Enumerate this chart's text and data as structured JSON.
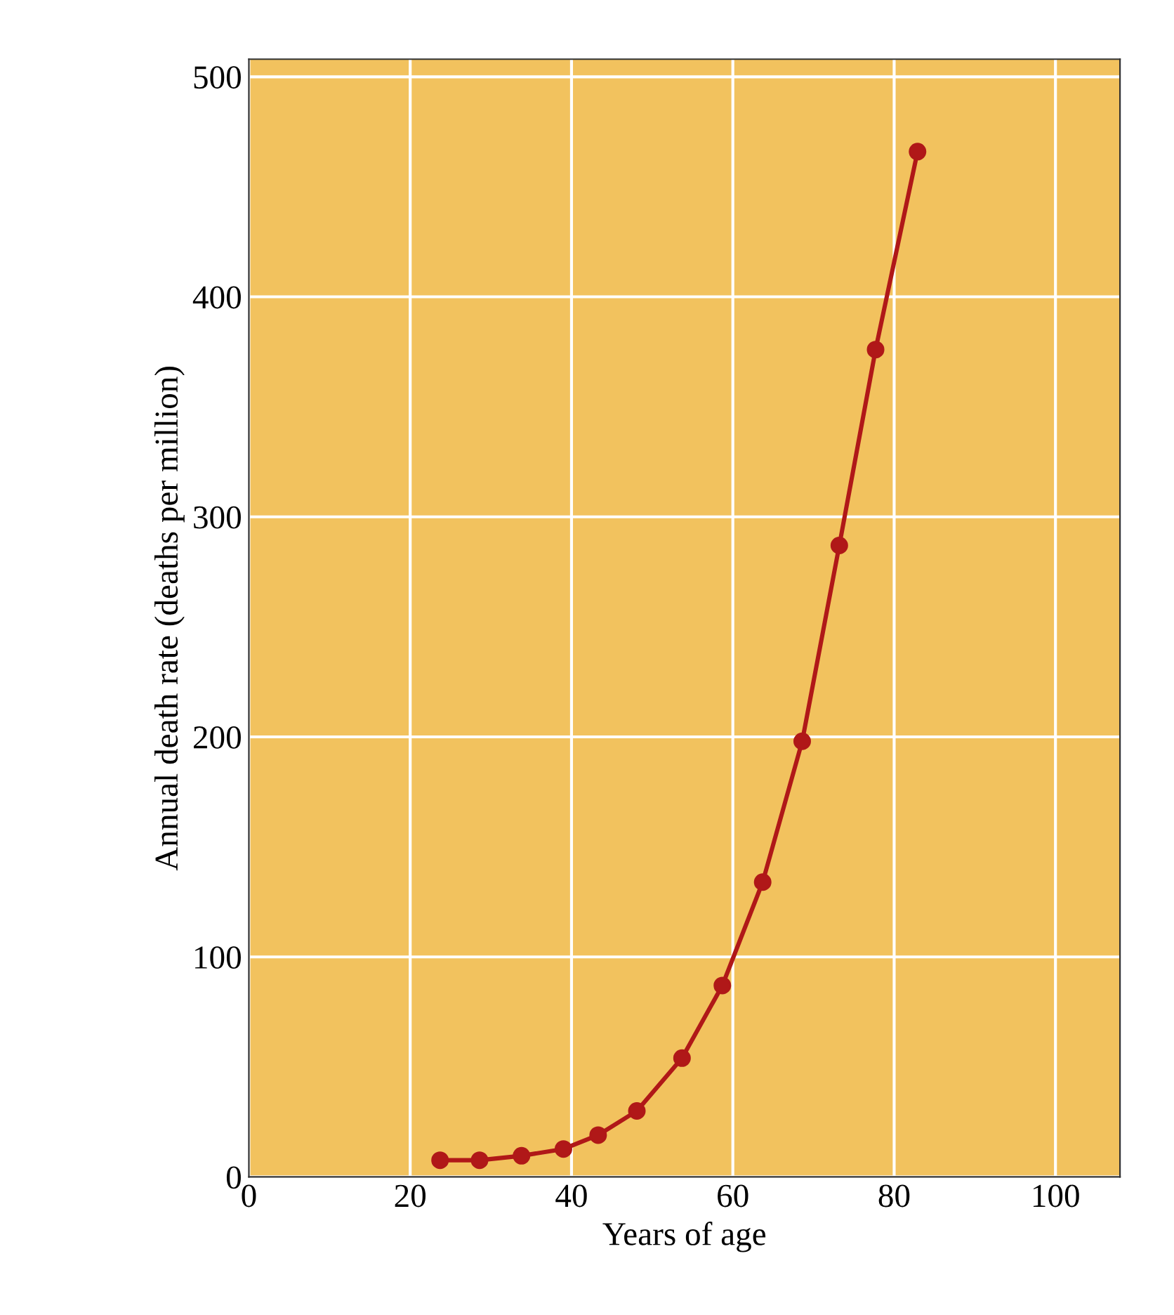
{
  "chart_data": {
    "type": "line",
    "xlabel": "Years of age",
    "ylabel": "Annual death rate (deaths per million)",
    "series": [
      {
        "color": "#b01818",
        "x": [
          23.7,
          28.6,
          33.8,
          39,
          43.3,
          48.1,
          53.7,
          58.7,
          63.7,
          68.6,
          73.2,
          77.7,
          82.9
        ],
        "values": [
          7.6,
          7.6,
          9.6,
          12.7,
          19,
          30,
          54,
          87,
          134,
          198,
          287,
          376,
          466
        ]
      }
    ],
    "xlim": [
      0,
      108
    ],
    "ylim": [
      0,
      508
    ],
    "xticks": [
      0,
      20,
      40,
      60,
      80,
      100
    ],
    "yticks": [
      0,
      100,
      200,
      300,
      400,
      500
    ],
    "grid": true,
    "marker": "circle",
    "line_style": "solid"
  }
}
